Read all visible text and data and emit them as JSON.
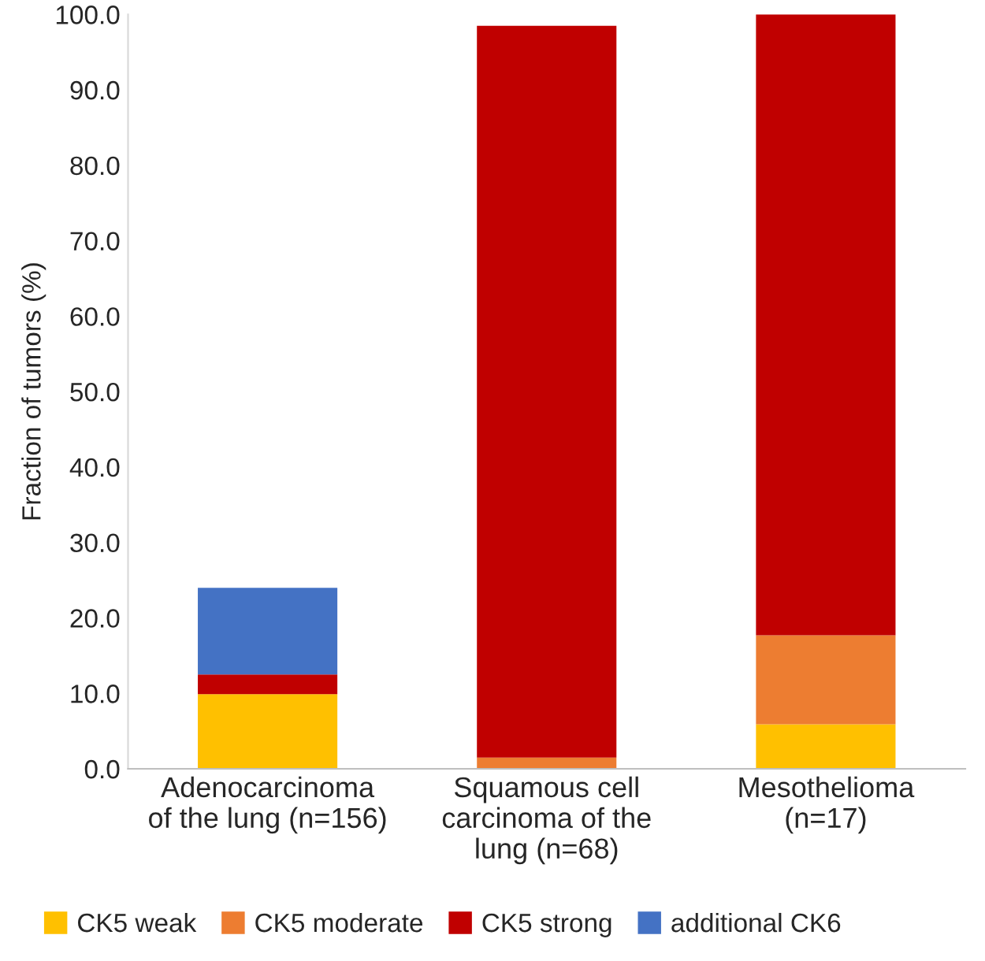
{
  "chart_data": {
    "type": "bar",
    "stacked": true,
    "ylabel": "Fraction of tumors (%)",
    "categories": [
      "Adenocarcinoma\nof the lung (n=156)",
      "Squamous cell\ncarcinoma of the\nlung (n=68)",
      "Mesothelioma\n(n=17)"
    ],
    "series": [
      {
        "name": "CK5 weak",
        "color": "#ffc000",
        "values": [
          9.9,
          0,
          5.9
        ]
      },
      {
        "name": "CK5 moderate",
        "color": "#ed7d31",
        "values": [
          0,
          1.5,
          11.8
        ]
      },
      {
        "name": "CK5 strong",
        "color": "#c00000",
        "values": [
          2.6,
          97.0,
          82.3
        ]
      },
      {
        "name": "additional CK6",
        "color": "#4472c4",
        "values": [
          11.5,
          0,
          0
        ]
      }
    ],
    "ylim": [
      0,
      100
    ],
    "yticks": [
      {
        "value": 0,
        "label": "0.0"
      },
      {
        "value": 10,
        "label": "10.0"
      },
      {
        "value": 20,
        "label": "20.0"
      },
      {
        "value": 30,
        "label": "30.0"
      },
      {
        "value": 40,
        "label": "40.0"
      },
      {
        "value": 50,
        "label": "50.0"
      },
      {
        "value": 60,
        "label": "60.0"
      },
      {
        "value": 70,
        "label": "70.0"
      },
      {
        "value": 80,
        "label": "80.0"
      },
      {
        "value": 90,
        "label": "90.0"
      },
      {
        "value": 100,
        "label": "100.0"
      }
    ],
    "grid": false,
    "legend": "bottom"
  }
}
